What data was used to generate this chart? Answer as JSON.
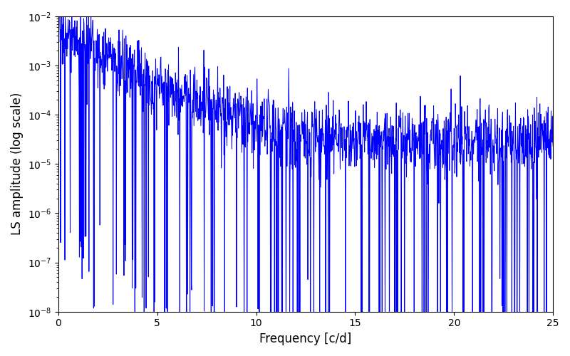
{
  "title": "",
  "xlabel": "Frequency [c/d]",
  "ylabel": "LS amplitude (log scale)",
  "xlim": [
    0,
    25
  ],
  "ylim": [
    1e-08,
    0.01
  ],
  "line_color": "#0000FF",
  "line_width": 0.7,
  "background_color": "#ffffff",
  "seed": 17,
  "n_points": 1500,
  "freq_max": 25.0,
  "base_amplitude": 3e-05,
  "peak_amplitude": 0.005,
  "decay_scale": 2.0
}
